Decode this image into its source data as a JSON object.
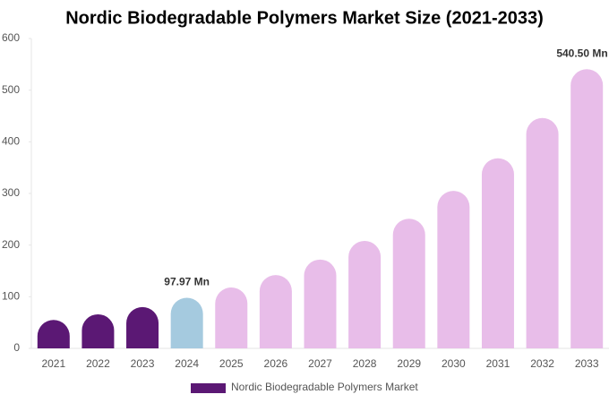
{
  "chart_data": {
    "type": "bar",
    "title": "Nordic Biodegradable Polymers Market Size (2021-2033)",
    "categories": [
      "2021",
      "2022",
      "2023",
      "2024",
      "2025",
      "2026",
      "2027",
      "2028",
      "2029",
      "2030",
      "2031",
      "2032",
      "2033"
    ],
    "series": [
      {
        "name": "Nordic Biodegradable Polymers Market",
        "color": "#5b1874",
        "colors": [
          "#5b1874",
          "#5b1874",
          "#5b1874",
          "#a5cadf",
          "#e8bde9",
          "#e8bde9",
          "#e8bde9",
          "#e8bde9",
          "#e8bde9",
          "#e8bde9",
          "#e8bde9",
          "#e8bde9",
          "#e8bde9"
        ],
        "values": [
          55,
          66,
          80,
          97.97,
          118,
          142,
          172,
          208,
          251,
          305,
          368,
          446,
          540.5
        ],
        "value_labels": [
          null,
          null,
          null,
          "97.97 Mn",
          null,
          null,
          null,
          null,
          null,
          null,
          null,
          null,
          "540.50 Mn"
        ]
      }
    ],
    "ylim": [
      0,
      600
    ],
    "yticks": [
      0,
      100,
      200,
      300,
      400,
      500,
      600
    ],
    "grid": false
  }
}
